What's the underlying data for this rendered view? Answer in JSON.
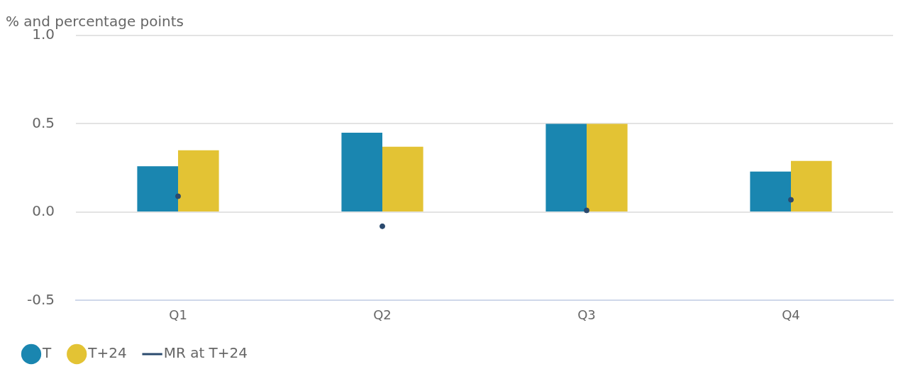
{
  "chart_data": {
    "type": "bar",
    "ylabel": "% and percentage points",
    "categories": [
      "Q1",
      "Q2",
      "Q3",
      "Q4"
    ],
    "series": [
      {
        "name": "T",
        "color": "#1a86b0",
        "values": [
          0.26,
          0.45,
          0.5,
          0.23
        ]
      },
      {
        "name": "T+24",
        "color": "#e3c334",
        "values": [
          0.35,
          0.37,
          0.5,
          0.29
        ]
      },
      {
        "name": "MR at T+24",
        "type": "scatter",
        "color": "#2b4a6e",
        "x": [
          "Q1",
          "Q2",
          "Q3",
          "Q4"
        ],
        "values": [
          0.09,
          -0.08,
          0.01,
          0.07
        ]
      }
    ],
    "ylim": [
      -0.5,
      1.0
    ],
    "yticks": [
      {
        "value": -0.5,
        "label": "-0.5"
      },
      {
        "value": 0,
        "label": "0.0"
      },
      {
        "value": 0.5,
        "label": "0.5"
      },
      {
        "value": 1,
        "label": "1.0"
      }
    ],
    "grid": "y",
    "legend": "bottom left",
    "marker": "circle"
  }
}
